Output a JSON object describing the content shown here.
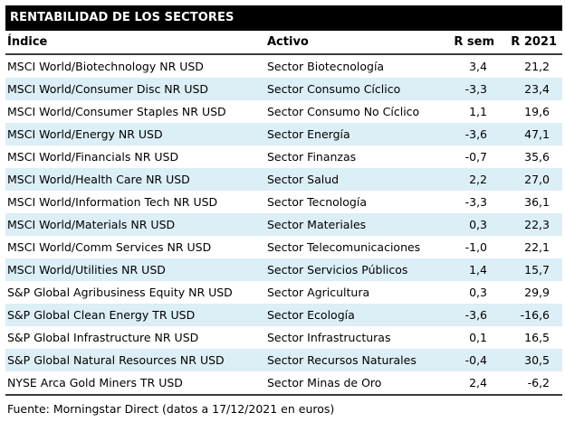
{
  "title": "RENTABILIDAD DE LOS SECTORES",
  "footer": "Fuente: Morningstar Direct (datos a 17/12/2021 en euros)",
  "colors": {
    "title_bar_bg": "#000000",
    "title_bar_text": "#ffffff",
    "stripe_row_bg": "#dceef6",
    "separator_line": "#3c3c3c",
    "body_text": "#000000"
  },
  "table": {
    "columns": {
      "indice": "Índice",
      "activo": "Activo",
      "r_sem": "R sem",
      "r_2021": "R 2021"
    },
    "rows": [
      {
        "indice": "MSCI World/Biotechnology NR USD",
        "activo": "Sector Biotecnología",
        "r_sem": "3,4",
        "r_2021": "21,2"
      },
      {
        "indice": "MSCI World/Consumer Disc NR USD",
        "activo": "Sector Consumo Cíclico",
        "r_sem": "-3,3",
        "r_2021": "23,4"
      },
      {
        "indice": "MSCI World/Consumer Staples NR USD",
        "activo": "Sector Consumo No Cíclico",
        "r_sem": "1,1",
        "r_2021": "19,6"
      },
      {
        "indice": "MSCI World/Energy NR USD",
        "activo": "Sector Energía",
        "r_sem": "-3,6",
        "r_2021": "47,1"
      },
      {
        "indice": "MSCI World/Financials NR USD",
        "activo": "Sector Finanzas",
        "r_sem": "-0,7",
        "r_2021": "35,6"
      },
      {
        "indice": "MSCI World/Health Care NR USD",
        "activo": "Sector Salud",
        "r_sem": "2,2",
        "r_2021": "27,0"
      },
      {
        "indice": "MSCI World/Information Tech NR USD",
        "activo": "Sector Tecnología",
        "r_sem": "-3,3",
        "r_2021": "36,1"
      },
      {
        "indice": "MSCI World/Materials NR USD",
        "activo": "Sector Materiales",
        "r_sem": "0,3",
        "r_2021": "22,3"
      },
      {
        "indice": "MSCI World/Comm Services NR USD",
        "activo": "Sector Telecomunicaciones",
        "r_sem": "-1,0",
        "r_2021": "22,1"
      },
      {
        "indice": "MSCI World/Utilities NR USD",
        "activo": "Sector Servicios Públicos",
        "r_sem": "1,4",
        "r_2021": "15,7"
      },
      {
        "indice": "S&P Global Agribusiness Equity NR USD",
        "activo": "Sector Agricultura",
        "r_sem": "0,3",
        "r_2021": "29,9"
      },
      {
        "indice": "S&P Global Clean Energy TR USD",
        "activo": "Sector Ecología",
        "r_sem": "-3,6",
        "r_2021": "-16,6"
      },
      {
        "indice": "S&P Global Infrastructure NR USD",
        "activo": "Sector Infrastructuras",
        "r_sem": "0,1",
        "r_2021": "16,5"
      },
      {
        "indice": "S&P Global Natural Resources NR USD",
        "activo": "Sector Recursos Naturales",
        "r_sem": "-0,4",
        "r_2021": "30,5"
      },
      {
        "indice": "NYSE Arca Gold Miners TR USD",
        "activo": "Sector Minas de Oro",
        "r_sem": "2,4",
        "r_2021": "-6,2"
      }
    ]
  }
}
